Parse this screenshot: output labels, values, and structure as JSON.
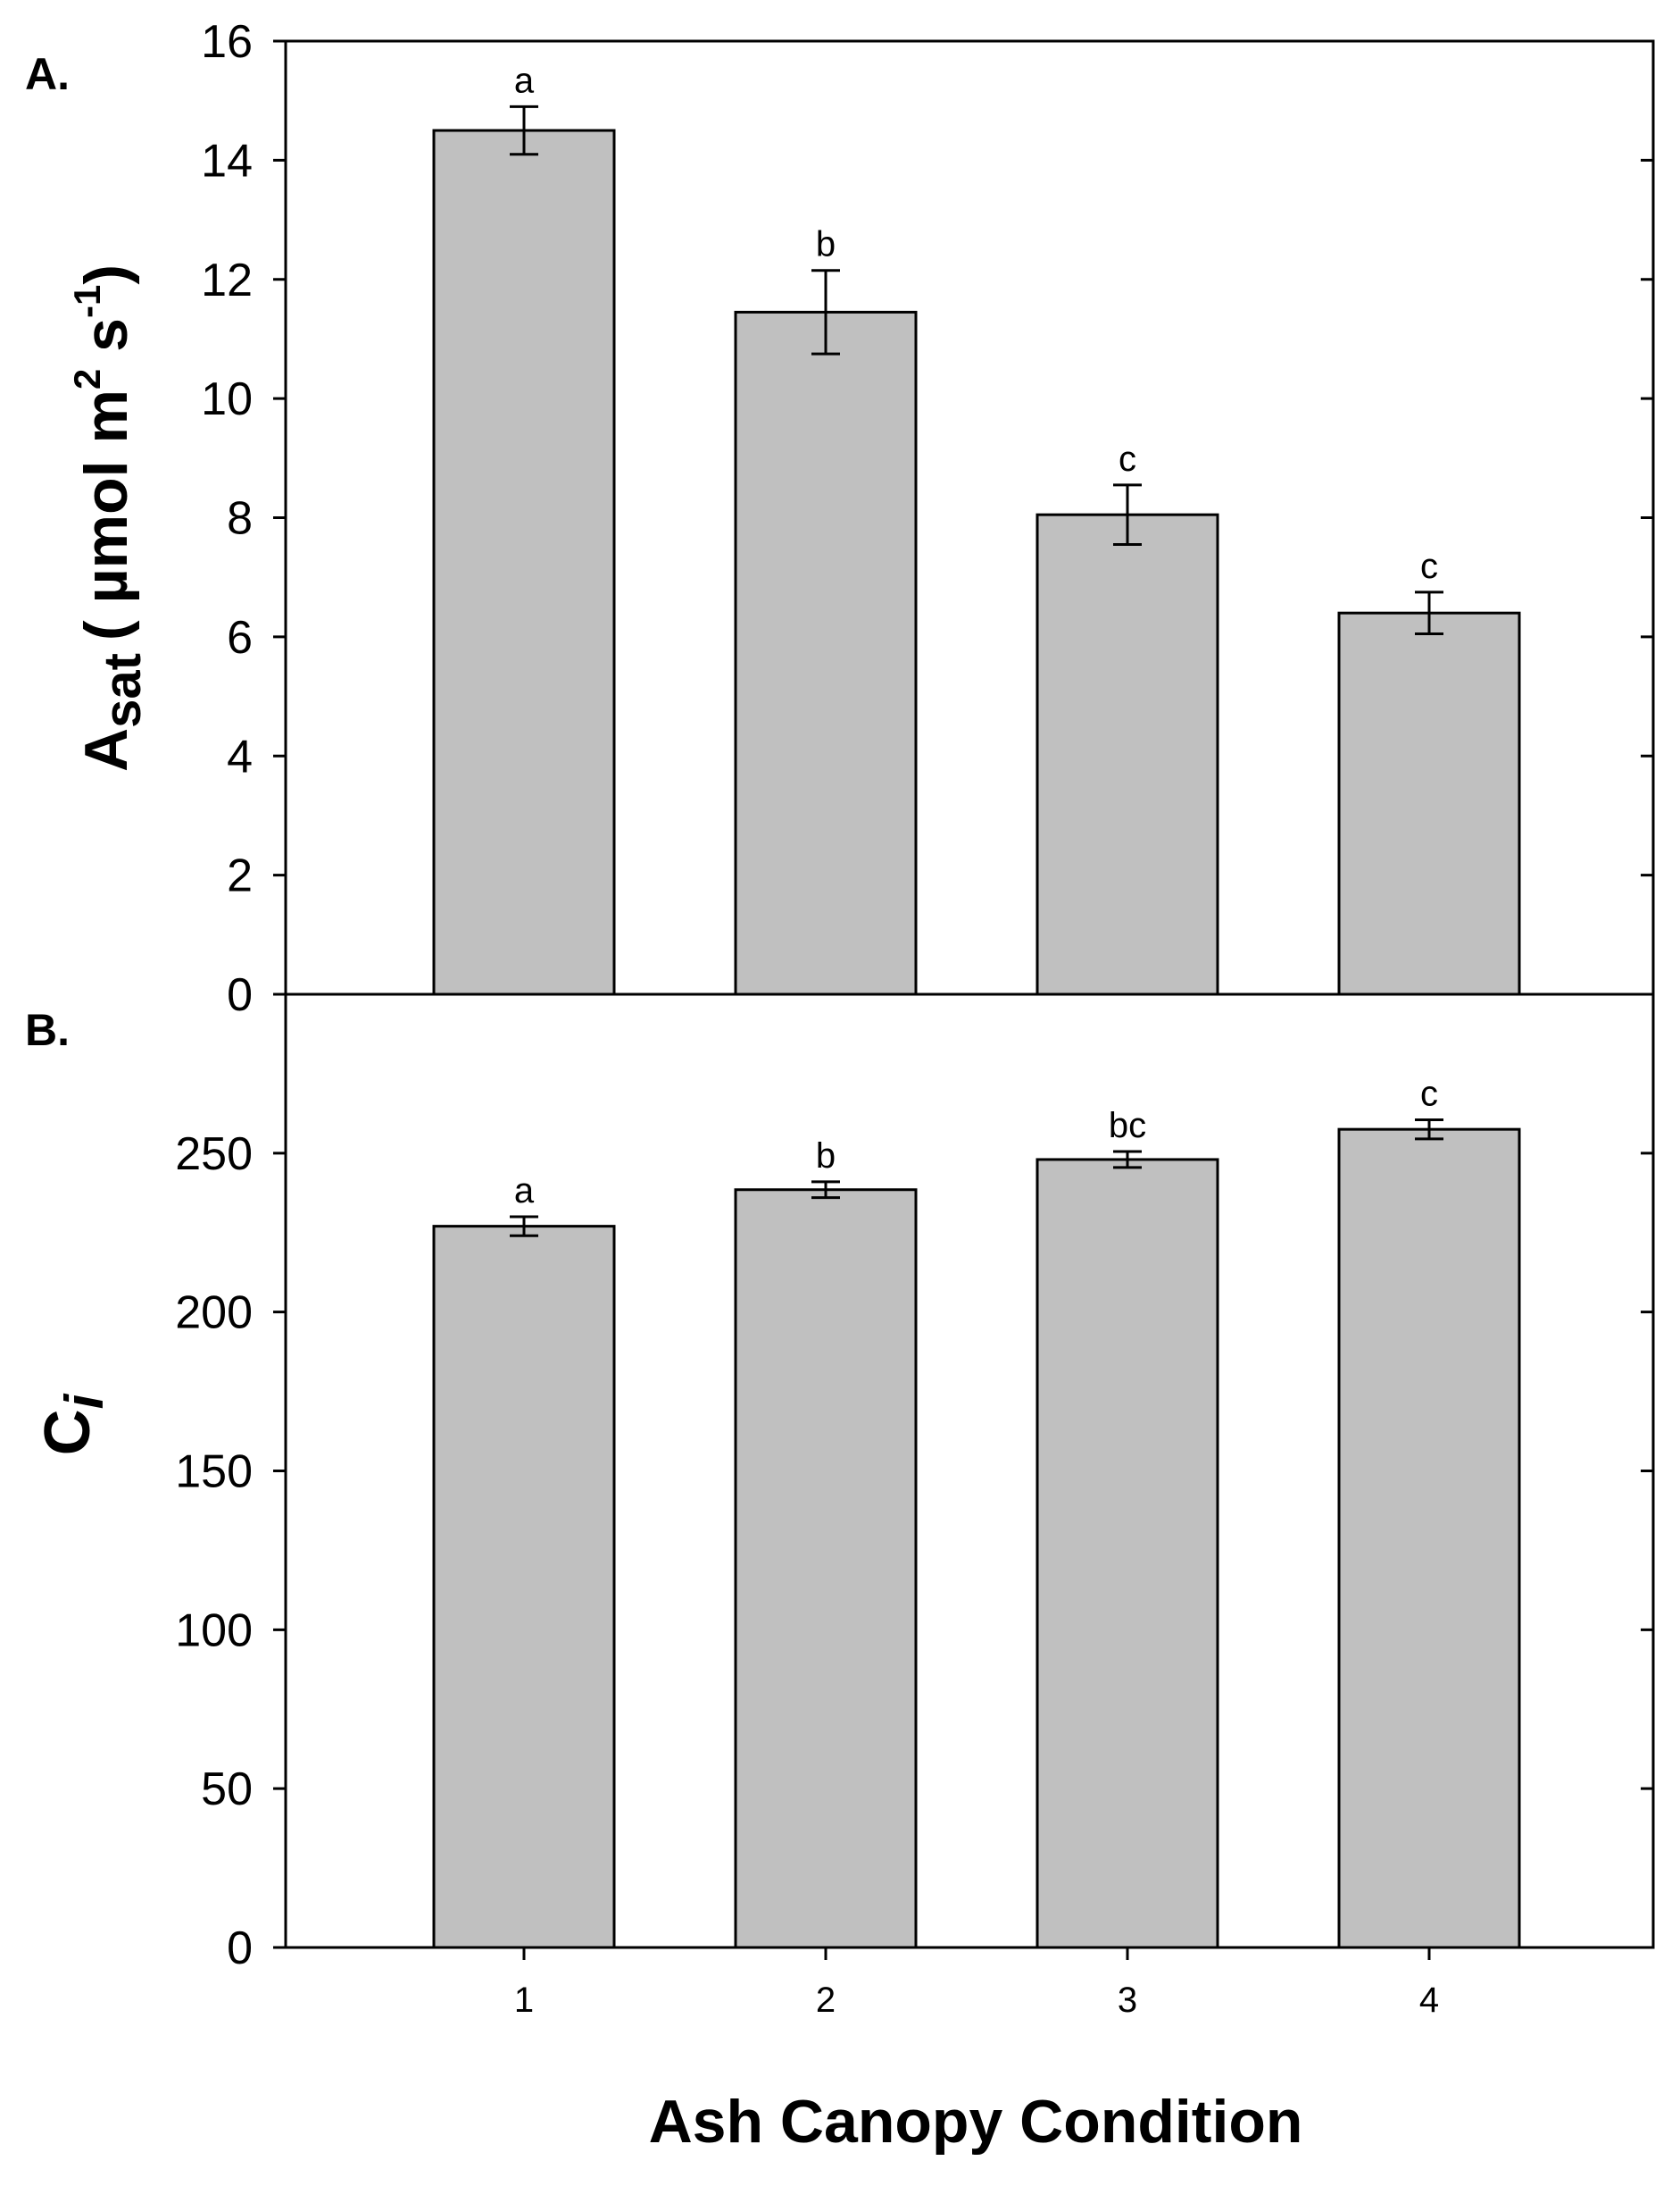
{
  "chart_data": [
    {
      "panel": "A.",
      "type": "bar",
      "categories": [
        "1",
        "2",
        "3",
        "4"
      ],
      "values": [
        14.5,
        11.45,
        8.05,
        6.4
      ],
      "errors": [
        0.4,
        0.7,
        0.5,
        0.35
      ],
      "significance": [
        "a",
        "b",
        "c",
        "c"
      ],
      "ylabel": {
        "main": "A",
        "sub": "sat",
        "unit_open": "( µmol m",
        "sup1": "2",
        "unit_mid": " s",
        "sup2": "-1",
        "unit_close": ")"
      },
      "ylim": [
        0,
        16
      ],
      "yticks": [
        "0",
        "2",
        "4",
        "6",
        "8",
        "10",
        "12",
        "14",
        "16"
      ],
      "bar_color": "#c0c0c0"
    },
    {
      "panel": "B.",
      "type": "bar",
      "categories": [
        "1",
        "2",
        "3",
        "4"
      ],
      "values": [
        227,
        238.5,
        248,
        257.5
      ],
      "errors": [
        3,
        2.5,
        2.5,
        3
      ],
      "significance": [
        "a",
        "b",
        "bc",
        "c"
      ],
      "ylabel": {
        "main": "C",
        "sub": "i"
      },
      "ylim": [
        0,
        300
      ],
      "yticks": [
        "0",
        "50",
        "100",
        "150",
        "200",
        "250"
      ],
      "bar_color": "#c0c0c0"
    }
  ],
  "xlabel": "Ash Canopy Condition"
}
